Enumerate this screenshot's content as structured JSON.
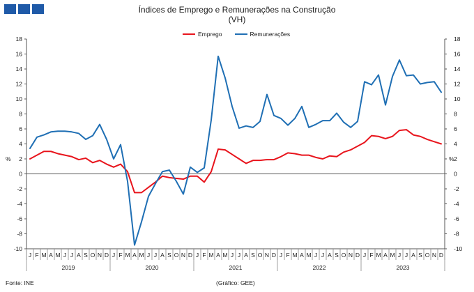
{
  "header": {
    "title_line1": "Índices de Emprego e Remunerações na Construção",
    "title_line2": "(VH)"
  },
  "footer": {
    "source": "Fonte: INE",
    "credit": "(Gráfico: GEE)"
  },
  "colors": {
    "emprego": "#e8141c",
    "remuneracoes": "#1f6fb4",
    "logo": "#1f5aa8",
    "axis": "#555555"
  },
  "chart_data": {
    "type": "line",
    "ylabel": "%",
    "ylabel_right": "%",
    "ylim": [
      -10,
      18
    ],
    "ytick_step": 2,
    "grid": false,
    "legend_position": "top-center",
    "month_labels": [
      "J",
      "F",
      "M",
      "A",
      "M",
      "J",
      "J",
      "A",
      "S",
      "O",
      "N",
      "D"
    ],
    "years": [
      "2019",
      "2020",
      "2021",
      "2022",
      "2023"
    ],
    "x": [
      "2019-01",
      "2019-02",
      "2019-03",
      "2019-04",
      "2019-05",
      "2019-06",
      "2019-07",
      "2019-08",
      "2019-09",
      "2019-10",
      "2019-11",
      "2019-12",
      "2020-01",
      "2020-02",
      "2020-03",
      "2020-04",
      "2020-05",
      "2020-06",
      "2020-07",
      "2020-08",
      "2020-09",
      "2020-10",
      "2020-11",
      "2020-12",
      "2021-01",
      "2021-02",
      "2021-03",
      "2021-04",
      "2021-05",
      "2021-06",
      "2021-07",
      "2021-08",
      "2021-09",
      "2021-10",
      "2021-11",
      "2021-12",
      "2022-01",
      "2022-02",
      "2022-03",
      "2022-04",
      "2022-05",
      "2022-06",
      "2022-07",
      "2022-08",
      "2022-09",
      "2022-10",
      "2022-11",
      "2022-12",
      "2023-01",
      "2023-02",
      "2023-03",
      "2023-04",
      "2023-05",
      "2023-06",
      "2023-07",
      "2023-08",
      "2023-09",
      "2023-10",
      "2023-11",
      "2023-12"
    ],
    "series": [
      {
        "name": "Emprego",
        "color": "#e8141c",
        "values": [
          2.0,
          2.5,
          3.0,
          3.0,
          2.7,
          2.5,
          2.3,
          1.9,
          2.1,
          1.5,
          1.8,
          1.3,
          0.9,
          1.3,
          0.3,
          -2.5,
          -2.5,
          -1.8,
          -1.1,
          -0.3,
          -0.5,
          -0.6,
          -0.7,
          -0.3,
          -0.3,
          -1.1,
          0.3,
          3.3,
          3.2,
          2.6,
          2.0,
          1.4,
          1.8,
          1.8,
          1.9,
          1.9,
          2.3,
          2.8,
          2.7,
          2.5,
          2.5,
          2.2,
          2.0,
          2.4,
          2.3,
          2.9,
          3.2,
          3.7,
          4.2,
          5.1,
          5.0,
          4.7,
          5.0,
          5.8,
          5.9,
          5.2,
          5.0,
          4.6,
          4.3,
          4.0
        ]
      },
      {
        "name": "Remunerações",
        "color": "#1f6fb4",
        "values": [
          3.4,
          4.9,
          5.2,
          5.6,
          5.7,
          5.7,
          5.6,
          5.4,
          4.6,
          5.1,
          6.6,
          4.6,
          2.0,
          3.9,
          -1.0,
          -9.5,
          -6.4,
          -3.0,
          -1.3,
          0.3,
          0.5,
          -1.0,
          -2.7,
          0.9,
          0.2,
          0.8,
          7.2,
          15.7,
          12.8,
          9.0,
          6.1,
          6.4,
          6.2,
          7.0,
          10.6,
          7.8,
          7.4,
          6.5,
          7.4,
          9.0,
          6.2,
          6.6,
          7.1,
          7.1,
          8.1,
          6.9,
          6.2,
          7.0,
          12.3,
          11.9,
          13.2,
          9.2,
          13.0,
          15.2,
          13.1,
          13.2,
          12.0,
          12.2,
          12.3,
          10.9
        ]
      }
    ]
  }
}
